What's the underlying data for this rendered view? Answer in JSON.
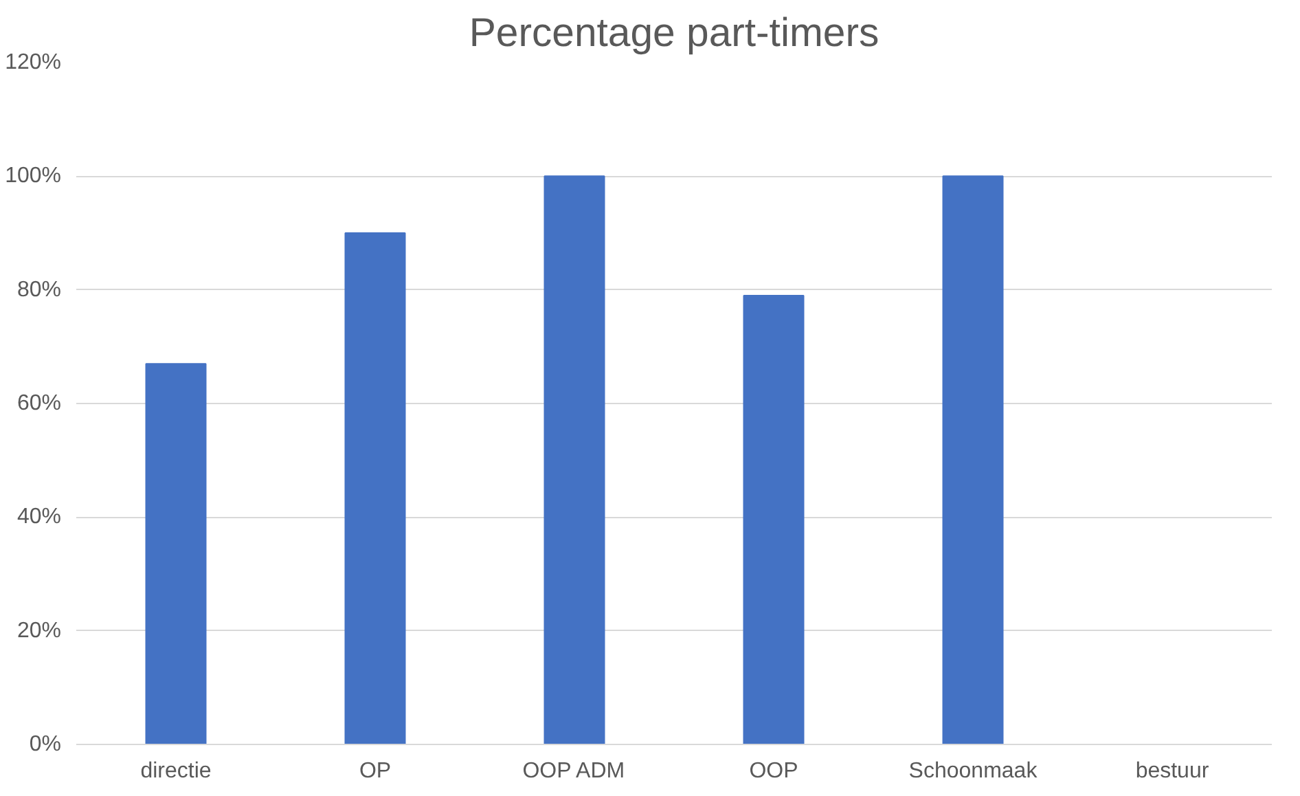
{
  "chart_data": {
    "type": "bar",
    "title": "Percentage part-timers",
    "categories": [
      "directie",
      "OP",
      "OOP ADM",
      "OOP",
      "Schoonmaak",
      "bestuur"
    ],
    "values": [
      67,
      90,
      100,
      79,
      100,
      0
    ],
    "color": "#4472c4",
    "ylim": [
      0,
      120
    ],
    "yticks": [
      {
        "value": 0,
        "label": "0%"
      },
      {
        "value": 20,
        "label": "20%"
      },
      {
        "value": 40,
        "label": "40%"
      },
      {
        "value": 60,
        "label": "60%"
      },
      {
        "value": 80,
        "label": "80%"
      },
      {
        "value": 100,
        "label": "100%"
      },
      {
        "value": 120,
        "label": "120%"
      }
    ],
    "grid": "y"
  }
}
